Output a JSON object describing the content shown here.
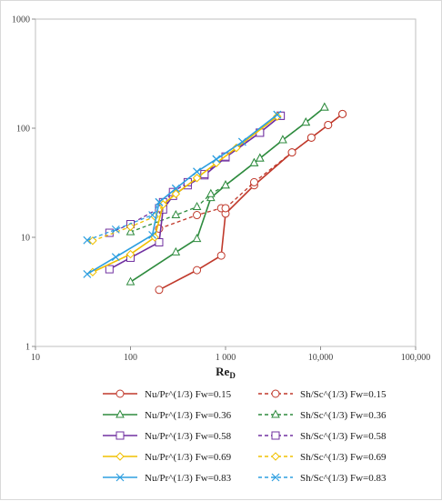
{
  "chart_data": {
    "type": "line",
    "title": "",
    "xlabel": "Re",
    "xlabel_sub": "D",
    "ylabel": "",
    "xscale": "log",
    "yscale": "log",
    "xlim": [
      10,
      100000
    ],
    "ylim": [
      1,
      1000
    ],
    "x_tick_labels": [
      "10",
      "100",
      "1 000",
      "10,000",
      "100,000"
    ],
    "y_tick_labels": [
      "1",
      "10",
      "100",
      "1000"
    ],
    "grid": "none",
    "legend_placement": "bottom",
    "series": [
      {
        "name": "Nu/Pr^(1/3) Fw=0.15",
        "color": "#c0392b",
        "dash": "solid",
        "marker": "circle",
        "x": [
          200,
          500,
          900,
          1000,
          2000,
          5000,
          8000,
          12000,
          17000
        ],
        "y": [
          3.3,
          5.0,
          6.8,
          16.5,
          30,
          60,
          82,
          107,
          135
        ]
      },
      {
        "name": "Sh/Sc^(1/3) Fw=0.15",
        "color": "#c0392b",
        "dash": "dashed",
        "marker": "circle",
        "x": [
          200,
          500,
          900,
          1000,
          2000,
          5000,
          8000,
          12000,
          17000
        ],
        "y": [
          12,
          16,
          18.5,
          18.5,
          32,
          60,
          82,
          107,
          135
        ]
      },
      {
        "name": "Nu/Pr^(1/3) Fw=0.36",
        "color": "#2e8b3e",
        "dash": "solid",
        "marker": "triangle",
        "x": [
          100,
          300,
          500,
          700,
          1000,
          2000,
          2300,
          4000,
          7000,
          11000
        ],
        "y": [
          3.9,
          7.3,
          9.7,
          23,
          30,
          48,
          53,
          78,
          113,
          155
        ]
      },
      {
        "name": "Sh/Sc^(1/3) Fw=0.36",
        "color": "#2e8b3e",
        "dash": "dashed",
        "marker": "triangle",
        "x": [
          100,
          300,
          500,
          700,
          1000,
          2000,
          2300,
          4000,
          7000,
          11000
        ],
        "y": [
          11.2,
          16,
          19,
          25,
          30,
          48,
          53,
          78,
          113,
          155
        ]
      },
      {
        "name": "Nu/Pr^(1/3) Fw=0.58",
        "color": "#7030a0",
        "dash": "solid",
        "marker": "square",
        "x": [
          60,
          100,
          200,
          220,
          280,
          400,
          600,
          1000,
          2300,
          3800
        ],
        "y": [
          5.1,
          6.5,
          9.0,
          18,
          24,
          30,
          37,
          54,
          91,
          130
        ]
      },
      {
        "name": "Sh/Sc^(1/3) Fw=0.58",
        "color": "#7030a0",
        "dash": "dashed",
        "marker": "square",
        "x": [
          60,
          100,
          200,
          220,
          280,
          400,
          600,
          1000,
          2300,
          3800
        ],
        "y": [
          11,
          13.2,
          18.5,
          21,
          26,
          32,
          38,
          55,
          91,
          130
        ]
      },
      {
        "name": "Nu/Pr^(1/3) Fw=0.69",
        "color": "#f0c000",
        "dash": "solid",
        "marker": "diamond",
        "x": [
          40,
          100,
          180,
          220,
          300,
          500,
          800,
          1300,
          3500
        ],
        "y": [
          4.8,
          7.0,
          10.0,
          20,
          25,
          35,
          48,
          66,
          128
        ]
      },
      {
        "name": "Sh/Sc^(1/3) Fw=0.69",
        "color": "#f0c000",
        "dash": "dashed",
        "marker": "diamond",
        "x": [
          40,
          100,
          180,
          220,
          300,
          500,
          800,
          1300,
          3500
        ],
        "y": [
          9.3,
          12.5,
          15.5,
          20,
          25,
          35,
          48,
          66,
          128
        ]
      },
      {
        "name": "Nu/Pr^(1/3) Fw=0.83",
        "color": "#2e9fe0",
        "dash": "solid",
        "marker": "x",
        "x": [
          35,
          70,
          170,
          200,
          300,
          500,
          800,
          1500,
          3500
        ],
        "y": [
          4.6,
          6.6,
          10.5,
          21,
          28,
          40,
          52,
          75,
          133
        ]
      },
      {
        "name": "Sh/Sc^(1/3) Fw=0.83",
        "color": "#2e9fe0",
        "dash": "dashed",
        "marker": "x",
        "x": [
          35,
          70,
          170,
          200,
          300,
          500,
          800,
          1500,
          3500
        ],
        "y": [
          9.4,
          11.8,
          16,
          21,
          28,
          40,
          52,
          75,
          133
        ]
      }
    ]
  }
}
